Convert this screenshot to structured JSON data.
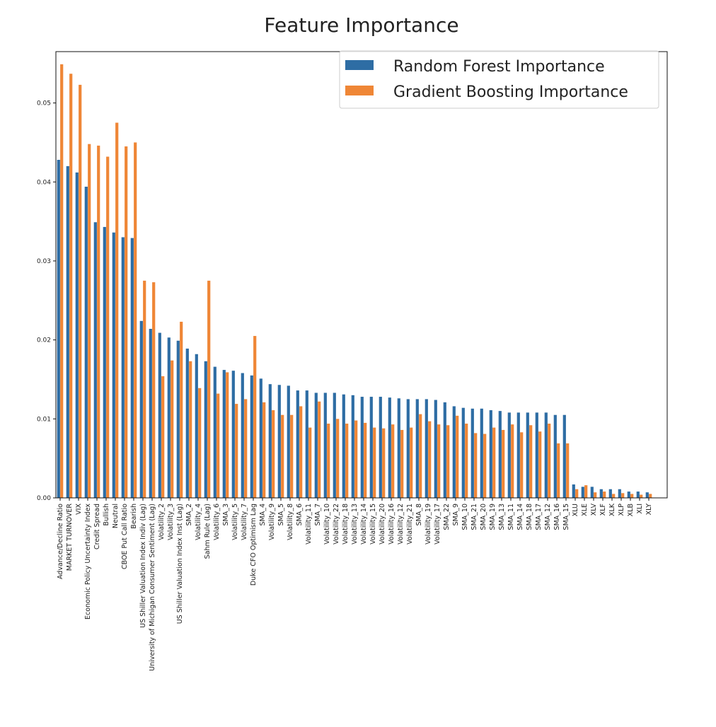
{
  "chart_data": {
    "type": "bar",
    "title": "Feature Importance",
    "xlabel": "",
    "ylabel": "",
    "ylim": [
      0,
      0.0565
    ],
    "yticks": [
      0.0,
      0.01,
      0.02,
      0.03,
      0.04,
      0.05
    ],
    "ytick_labels": [
      "0.00",
      "0.01",
      "0.02",
      "0.03",
      "0.04",
      "0.05"
    ],
    "legend_position": "top-right",
    "grid": false,
    "categories": [
      "Advance/Decline Ratio",
      "MARKET TURNOVER",
      "VIX",
      "Economic Policy Uncertainty Index",
      "Credit Spread",
      "Bullish",
      "Neutral",
      "CBOE Put Call Ratio",
      "Bearish",
      "US Shiller Valuation Index Indiv (Lag)",
      "University of Michigan Consumer Sentiment (Lag)",
      "Volatility_2",
      "Volatility_3",
      "US Shiller Valuation Index Inst (Lag)",
      "SMA_2",
      "Volatility_4",
      "Sahm Rule (Lag)",
      "Volatility_6",
      "SMA_3",
      "Volatility_5",
      "Volatility_7",
      "Duke CFO Optimism Lag",
      "SMA_4",
      "Volatility_9",
      "SMA_5",
      "Volatility_8",
      "SMA_6",
      "Volatility_11",
      "SMA_7",
      "Volatility_10",
      "Volatility_22",
      "Volatility_18",
      "Volatility_13",
      "Volatility_14",
      "Volatility_15",
      "Volatility_20",
      "Volatility_16",
      "Volatility_12",
      "Volatility_21",
      "SMA_8",
      "Volatility_19",
      "Volatility_17",
      "SMA_22",
      "SMA_9",
      "SMA_10",
      "SMA_21",
      "SMA_20",
      "SMA_19",
      "SMA_13",
      "SMA_11",
      "SMA_14",
      "SMA_18",
      "SMA_17",
      "SMA_12",
      "SMA_16",
      "SMA_15",
      "XLU",
      "XLE",
      "XLV",
      "XLF",
      "XLK",
      "XLP",
      "XLB",
      "XLI",
      "XLY"
    ],
    "series": [
      {
        "name": "Random Forest Importance",
        "color": "#2e6da4",
        "values": [
          0.0428,
          0.042,
          0.0412,
          0.0394,
          0.0349,
          0.0343,
          0.0336,
          0.033,
          0.0329,
          0.0224,
          0.0214,
          0.0209,
          0.0203,
          0.0199,
          0.0189,
          0.0182,
          0.0173,
          0.0166,
          0.0162,
          0.0161,
          0.0158,
          0.0155,
          0.0151,
          0.0144,
          0.0143,
          0.0142,
          0.0136,
          0.0136,
          0.0133,
          0.0133,
          0.0133,
          0.0131,
          0.013,
          0.0128,
          0.0128,
          0.0128,
          0.0127,
          0.0126,
          0.0125,
          0.0125,
          0.0125,
          0.0124,
          0.0121,
          0.0116,
          0.0114,
          0.0113,
          0.0113,
          0.0111,
          0.011,
          0.0108,
          0.0108,
          0.0108,
          0.0108,
          0.0108,
          0.0105,
          0.0105,
          0.0017,
          0.0014,
          0.0014,
          0.0011,
          0.0011,
          0.0011,
          0.0008,
          0.0008,
          0.0007
        ]
      },
      {
        "name": "Gradient Boosting Importance",
        "color": "#ef8636",
        "values": [
          0.0549,
          0.0537,
          0.0523,
          0.0448,
          0.0446,
          0.0432,
          0.0475,
          0.0445,
          0.045,
          0.0275,
          0.0273,
          0.0154,
          0.0174,
          0.0223,
          0.0173,
          0.0139,
          0.0275,
          0.0132,
          0.0159,
          0.0119,
          0.0125,
          0.0205,
          0.0121,
          0.0111,
          0.0105,
          0.0105,
          0.0116,
          0.0089,
          0.0122,
          0.0094,
          0.01,
          0.0094,
          0.0098,
          0.0095,
          0.0089,
          0.0088,
          0.0093,
          0.0086,
          0.0089,
          0.0106,
          0.0097,
          0.0093,
          0.0092,
          0.0104,
          0.0094,
          0.0082,
          0.0081,
          0.0089,
          0.0086,
          0.0093,
          0.0083,
          0.0092,
          0.0084,
          0.0094,
          0.0069,
          0.0069,
          0.0011,
          0.0016,
          0.0007,
          0.0008,
          0.0005,
          0.0006,
          0.0005,
          0.0004,
          0.0005
        ]
      }
    ]
  }
}
